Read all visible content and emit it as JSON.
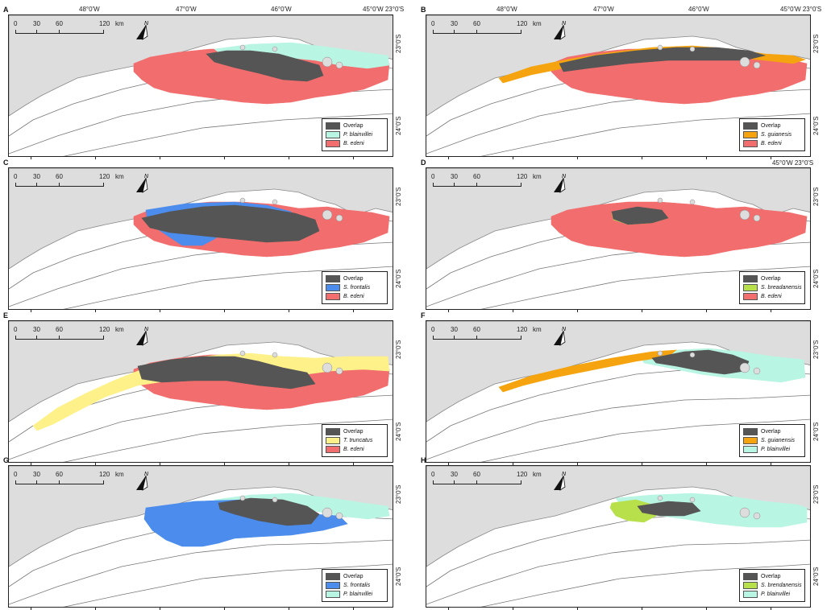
{
  "figure": {
    "lon_labels": [
      "48°0'W",
      "47°0'W",
      "46°0'W",
      "45°0'W 23°0'S"
    ],
    "lat_labels": [
      "23°0'S",
      "24°0'S"
    ],
    "scale": {
      "ticks": [
        "0",
        "30",
        "60",
        "120"
      ],
      "unit": "km"
    },
    "north_label": "N",
    "colors": {
      "overlap": "#555555",
      "blainvillei": "#b9f5e3",
      "edeni": "#f26d6d",
      "guianensis": "#f5a40f",
      "frontalis": "#4b8cec",
      "breadanensis": "#b8e04a",
      "truncatus": "#fff18a",
      "land": "#dddddd"
    },
    "panels": [
      {
        "id": "A",
        "legend": [
          "Overlap",
          "P. blainvillei",
          "B. edeni"
        ],
        "colors": [
          "overlap",
          "blainvillei",
          "edeni"
        ],
        "italic": [
          false,
          true,
          true
        ],
        "show_lon": true
      },
      {
        "id": "B",
        "legend": [
          "Overlap",
          "S. guianesis",
          "B. edeni"
        ],
        "colors": [
          "overlap",
          "guianensis",
          "edeni"
        ],
        "italic": [
          false,
          true,
          true
        ],
        "show_lon": true
      },
      {
        "id": "C",
        "legend": [
          "Overlap",
          "S. frontalis",
          "B. edeni"
        ],
        "colors": [
          "overlap",
          "frontalis",
          "edeni"
        ],
        "italic": [
          false,
          true,
          true
        ],
        "show_lon": false
      },
      {
        "id": "D",
        "legend": [
          "Overlap",
          "S. breadanensis",
          "B. edeni"
        ],
        "colors": [
          "overlap",
          "breadanensis",
          "edeni"
        ],
        "italic": [
          false,
          true,
          true
        ],
        "show_lon": false,
        "top_note": "45°0'W 23°0'S"
      },
      {
        "id": "E",
        "legend": [
          "Overlap",
          "T. truncatus",
          "B. edeni"
        ],
        "colors": [
          "overlap",
          "truncatus",
          "edeni"
        ],
        "italic": [
          false,
          true,
          true
        ],
        "show_lon": false
      },
      {
        "id": "F",
        "legend": [
          "Overlap",
          "S. guianensis",
          "P. blainvillei"
        ],
        "colors": [
          "overlap",
          "guianensis",
          "blainvillei"
        ],
        "italic": [
          false,
          true,
          true
        ],
        "show_lon": false
      },
      {
        "id": "G",
        "legend": [
          "Overlap",
          "S. frontalis",
          "P. blainvillei"
        ],
        "colors": [
          "overlap",
          "frontalis",
          "blainvillei"
        ],
        "italic": [
          false,
          true,
          true
        ],
        "show_lon": false
      },
      {
        "id": "H",
        "legend": [
          "Overlap",
          "S. brendanensis",
          "P. blainvillei"
        ],
        "colors": [
          "overlap",
          "breadanensis",
          "blainvillei"
        ],
        "italic": [
          false,
          true,
          true
        ],
        "show_lon": false
      }
    ]
  }
}
